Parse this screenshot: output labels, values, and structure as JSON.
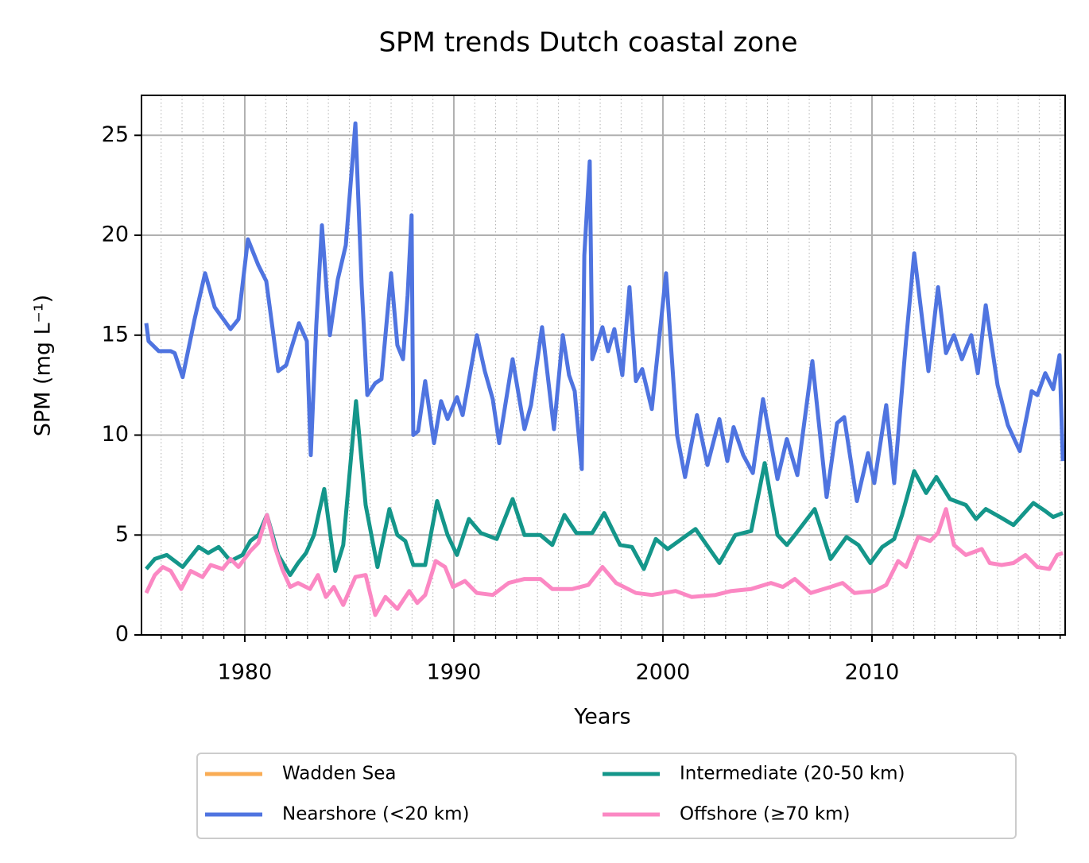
{
  "chart_data": {
    "type": "line",
    "title": "SPM trends Dutch coastal zone",
    "x_label": "Years",
    "y_label": "SPM (mg L⁻¹)",
    "xlim": [
      1975.06,
      2019.24
    ],
    "ylim": [
      0,
      27
    ],
    "xticks": [
      1980,
      1990,
      2000,
      2010
    ],
    "xminorticks": [
      1976,
      1977,
      1978,
      1979,
      1981,
      1982,
      1983,
      1984,
      1985,
      1986,
      1987,
      1988,
      1989,
      1991,
      1992,
      1993,
      1994,
      1995,
      1996,
      1997,
      1998,
      1999,
      2001,
      2002,
      2003,
      2004,
      2005,
      2006,
      2007,
      2008,
      2009,
      2011,
      2012,
      2013,
      2014,
      2015,
      2016,
      2017,
      2018,
      2019
    ],
    "yticks": [
      0,
      5,
      10,
      15,
      20,
      25
    ],
    "grid": true,
    "legend": "bottom",
    "series": [
      {
        "name": "Wadden Sea",
        "color": "#f9ac55",
        "x": [],
        "values": []
      },
      {
        "name": "Nearshore (<20 km)",
        "color": "#4f74e0",
        "x": [
          1975.29,
          1975.4,
          1975.89,
          1976.46,
          1976.65,
          1977.03,
          1977.6,
          1978.1,
          1978.56,
          1979.32,
          1979.7,
          1980.15,
          1980.65,
          1981.03,
          1981.6,
          1981.98,
          1982.59,
          1982.97,
          1983.16,
          1983.42,
          1983.69,
          1984.07,
          1984.45,
          1984.83,
          1985.29,
          1985.59,
          1985.86,
          1986.24,
          1986.54,
          1987.0,
          1987.3,
          1987.57,
          1987.79,
          1987.98,
          1988.06,
          1988.29,
          1988.63,
          1989.05,
          1989.39,
          1989.7,
          1990.15,
          1990.42,
          1991.1,
          1991.48,
          1991.86,
          1992.17,
          1992.81,
          1993.38,
          1993.69,
          1994.22,
          1994.79,
          1995.21,
          1995.51,
          1995.78,
          1996.12,
          1996.24,
          1996.5,
          1996.62,
          1997.11,
          1997.38,
          1997.68,
          1998.06,
          1998.4,
          1998.71,
          1999.01,
          1999.47,
          2000.15,
          2000.68,
          2001.06,
          2001.63,
          2002.13,
          2002.7,
          2003.08,
          2003.38,
          2003.84,
          2004.3,
          2004.79,
          2005.48,
          2005.93,
          2006.43,
          2007.15,
          2007.83,
          2008.33,
          2008.67,
          2009.28,
          2009.81,
          2010.11,
          2010.68,
          2011.06,
          2011.63,
          2012.02,
          2012.7,
          2013.16,
          2013.54,
          2013.92,
          2014.3,
          2014.75,
          2015.06,
          2015.44,
          2016.01,
          2016.5,
          2017.07,
          2017.64,
          2017.91,
          2018.29,
          2018.67,
          2018.97,
          2019.13
        ],
        "values": [
          15.6,
          14.7,
          14.2,
          14.2,
          14.1,
          12.9,
          15.8,
          18.1,
          16.4,
          15.3,
          15.8,
          19.8,
          18.5,
          17.7,
          13.2,
          13.5,
          15.6,
          14.7,
          9.0,
          15.5,
          20.5,
          15.0,
          17.8,
          19.5,
          25.6,
          17.5,
          12.0,
          12.6,
          12.8,
          18.1,
          14.5,
          13.8,
          17.0,
          21.0,
          10.0,
          10.2,
          12.7,
          9.6,
          11.7,
          10.8,
          11.9,
          11.0,
          15.0,
          13.2,
          11.8,
          9.6,
          13.8,
          10.3,
          11.5,
          15.4,
          10.3,
          15.0,
          13.0,
          12.2,
          8.3,
          19.0,
          23.7,
          13.8,
          15.4,
          14.2,
          15.3,
          13.0,
          17.4,
          12.7,
          13.3,
          11.3,
          18.1,
          10.0,
          7.9,
          11.0,
          8.5,
          10.8,
          8.7,
          10.4,
          9.0,
          8.1,
          11.8,
          7.8,
          9.8,
          8.0,
          13.7,
          6.9,
          10.6,
          10.9,
          6.7,
          9.1,
          7.6,
          11.5,
          7.6,
          14.7,
          19.1,
          13.2,
          17.4,
          14.1,
          15.0,
          13.8,
          15.0,
          13.1,
          16.5,
          12.5,
          10.5,
          9.2,
          12.2,
          12.0,
          13.1,
          12.3,
          14.0,
          8.7
        ]
      },
      {
        "name": "Intermediate (20-50 km)",
        "color": "#14968a",
        "x": [
          1975.29,
          1975.7,
          1976.27,
          1977.03,
          1977.79,
          1978.25,
          1978.75,
          1979.32,
          1979.89,
          1980.27,
          1980.65,
          1981.06,
          1981.6,
          1982.17,
          1982.55,
          1982.93,
          1983.31,
          1983.8,
          1984.33,
          1984.71,
          1985.32,
          1985.78,
          1986.35,
          1986.92,
          1987.3,
          1987.68,
          1988.06,
          1988.63,
          1989.2,
          1989.7,
          1990.15,
          1990.72,
          1991.29,
          1992.05,
          1992.81,
          1993.38,
          1994.14,
          1994.71,
          1995.29,
          1995.86,
          1996.62,
          1997.19,
          1997.95,
          1998.52,
          1999.09,
          1999.66,
          2000.23,
          2001.56,
          2002.7,
          2003.46,
          2004.22,
          2004.87,
          2005.48,
          2005.93,
          2006.31,
          2007.26,
          2008.02,
          2008.78,
          2009.35,
          2009.92,
          2010.49,
          2011.06,
          2011.44,
          2012.02,
          2012.59,
          2013.08,
          2013.73,
          2014.49,
          2014.98,
          2015.44,
          2016.12,
          2016.77,
          2017.72,
          2018.29,
          2018.67,
          2019.13
        ],
        "values": [
          3.3,
          3.8,
          4.0,
          3.4,
          4.4,
          4.1,
          4.4,
          3.7,
          4.0,
          4.7,
          5.0,
          6.0,
          4.0,
          3.0,
          3.6,
          4.1,
          5.0,
          7.3,
          3.2,
          4.5,
          11.7,
          6.5,
          3.4,
          6.3,
          5.0,
          4.7,
          3.5,
          3.5,
          6.7,
          5.0,
          4.0,
          5.8,
          5.1,
          4.8,
          6.8,
          5.0,
          5.0,
          4.5,
          6.0,
          5.1,
          5.1,
          6.1,
          4.5,
          4.4,
          3.3,
          4.8,
          4.3,
          5.3,
          3.6,
          5.0,
          5.2,
          8.6,
          5.0,
          4.5,
          5.0,
          6.3,
          3.8,
          4.9,
          4.5,
          3.6,
          4.4,
          4.8,
          6.0,
          8.2,
          7.1,
          7.9,
          6.8,
          6.5,
          5.8,
          6.3,
          5.9,
          5.5,
          6.6,
          6.2,
          5.9,
          6.1
        ]
      },
      {
        "name": "Offshore (≥70 km)",
        "color": "#fb88c3",
        "x": [
          1975.29,
          1975.7,
          1976.08,
          1976.46,
          1976.96,
          1977.41,
          1977.98,
          1978.37,
          1978.94,
          1979.32,
          1979.7,
          1980.27,
          1980.65,
          1981.06,
          1981.41,
          1981.79,
          1982.17,
          1982.55,
          1983.12,
          1983.5,
          1983.88,
          1984.26,
          1984.71,
          1985.29,
          1985.78,
          1986.24,
          1986.73,
          1987.3,
          1987.87,
          1988.25,
          1988.63,
          1989.13,
          1989.58,
          1989.96,
          1990.53,
          1991.1,
          1991.86,
          1992.62,
          1993.38,
          1994.14,
          1994.71,
          1995.67,
          1996.43,
          1997.11,
          1997.76,
          1998.71,
          1999.47,
          2000.61,
          2001.37,
          2002.51,
          2003.27,
          2004.22,
          2005.17,
          2005.74,
          2006.31,
          2007.07,
          2008.02,
          2008.59,
          2009.16,
          2010.11,
          2010.68,
          2011.25,
          2011.63,
          2012.21,
          2012.78,
          2013.16,
          2013.54,
          2013.92,
          2014.49,
          2015.25,
          2015.63,
          2016.2,
          2016.77,
          2017.34,
          2017.91,
          2018.48,
          2018.86,
          2019.13
        ],
        "values": [
          2.1,
          3.0,
          3.4,
          3.2,
          2.3,
          3.2,
          2.9,
          3.5,
          3.3,
          3.8,
          3.4,
          4.2,
          4.6,
          6.0,
          4.5,
          3.3,
          2.4,
          2.6,
          2.3,
          3.0,
          1.9,
          2.4,
          1.5,
          2.9,
          3.0,
          1.0,
          1.9,
          1.3,
          2.2,
          1.6,
          2.0,
          3.7,
          3.4,
          2.4,
          2.7,
          2.1,
          2.0,
          2.6,
          2.8,
          2.8,
          2.3,
          2.3,
          2.5,
          3.4,
          2.6,
          2.1,
          2.0,
          2.2,
          1.9,
          2.0,
          2.2,
          2.3,
          2.6,
          2.4,
          2.8,
          2.1,
          2.4,
          2.6,
          2.1,
          2.2,
          2.5,
          3.7,
          3.4,
          4.9,
          4.7,
          5.1,
          6.3,
          4.5,
          4.0,
          4.3,
          3.6,
          3.5,
          3.6,
          4.0,
          3.4,
          3.3,
          4.0,
          4.1
        ]
      }
    ]
  }
}
